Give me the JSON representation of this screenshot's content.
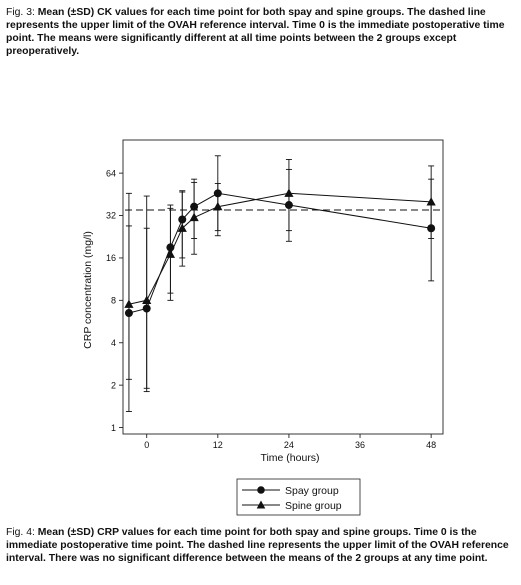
{
  "captions": {
    "top": {
      "prefix": "Fig. 3: ",
      "bold": "Mean (±SD) CK values for each time point for both spay and spine groups. The dashed line represents the upper limit of the OVAH reference interval. Time 0 is the immediate postoperative time point. The means were significantly different at all time points between the 2 groups except preoperatively."
    },
    "bottom": {
      "prefix": "Fig. 4: ",
      "bold": "Mean (±SD) CRP values for each time point for both spay and spine groups. Time 0 is the immediate postoperative time point. The dashed line represents the upper limit of the OVAH reference interval. There was no significant difference between the means of the 2 groups at any time point."
    }
  },
  "chart_data": {
    "type": "line",
    "title": "",
    "xlabel": "Time (hours)",
    "ylabel": "CRP concentration (mg/l)",
    "x_ticks": [
      0,
      12,
      24,
      36,
      48
    ],
    "y_ticks": [
      1,
      2,
      4,
      8,
      16,
      32,
      64
    ],
    "y_scale": "log2",
    "xlim": [
      -4,
      50
    ],
    "ylim": [
      0.9,
      110
    ],
    "reference_line": {
      "value": 35,
      "style": "dashed"
    },
    "legend": {
      "placement": "bottom-center"
    },
    "series": [
      {
        "name": "Spay group",
        "marker": "circle",
        "points": [
          {
            "x": -3,
            "y": 6.5,
            "lo": 1.3,
            "hi": 27
          },
          {
            "x": 0,
            "y": 7,
            "lo": 1.9,
            "hi": 26
          },
          {
            "x": 4,
            "y": 19,
            "lo": 9,
            "hi": 38
          },
          {
            "x": 6,
            "y": 30,
            "lo": 16,
            "hi": 47
          },
          {
            "x": 8,
            "y": 37,
            "lo": 22,
            "hi": 55
          },
          {
            "x": 12,
            "y": 46,
            "lo": 23,
            "hi": 85
          },
          {
            "x": 24,
            "y": 38,
            "lo": 21,
            "hi": 68
          },
          {
            "x": 48,
            "y": 26,
            "lo": 11,
            "hi": 58
          }
        ]
      },
      {
        "name": "Spine group",
        "marker": "triangle",
        "points": [
          {
            "x": -3,
            "y": 7.5,
            "lo": 2.2,
            "hi": 46
          },
          {
            "x": 0,
            "y": 8,
            "lo": 1.8,
            "hi": 44
          },
          {
            "x": 4,
            "y": 17,
            "lo": 8,
            "hi": 36
          },
          {
            "x": 6,
            "y": 26,
            "lo": 14,
            "hi": 48
          },
          {
            "x": 8,
            "y": 31,
            "lo": 17,
            "hi": 58
          },
          {
            "x": 12,
            "y": 37,
            "lo": 25,
            "hi": 54
          },
          {
            "x": 24,
            "y": 46,
            "lo": 25,
            "hi": 80
          },
          {
            "x": 48,
            "y": 40,
            "lo": 22,
            "hi": 72
          }
        ]
      }
    ]
  }
}
